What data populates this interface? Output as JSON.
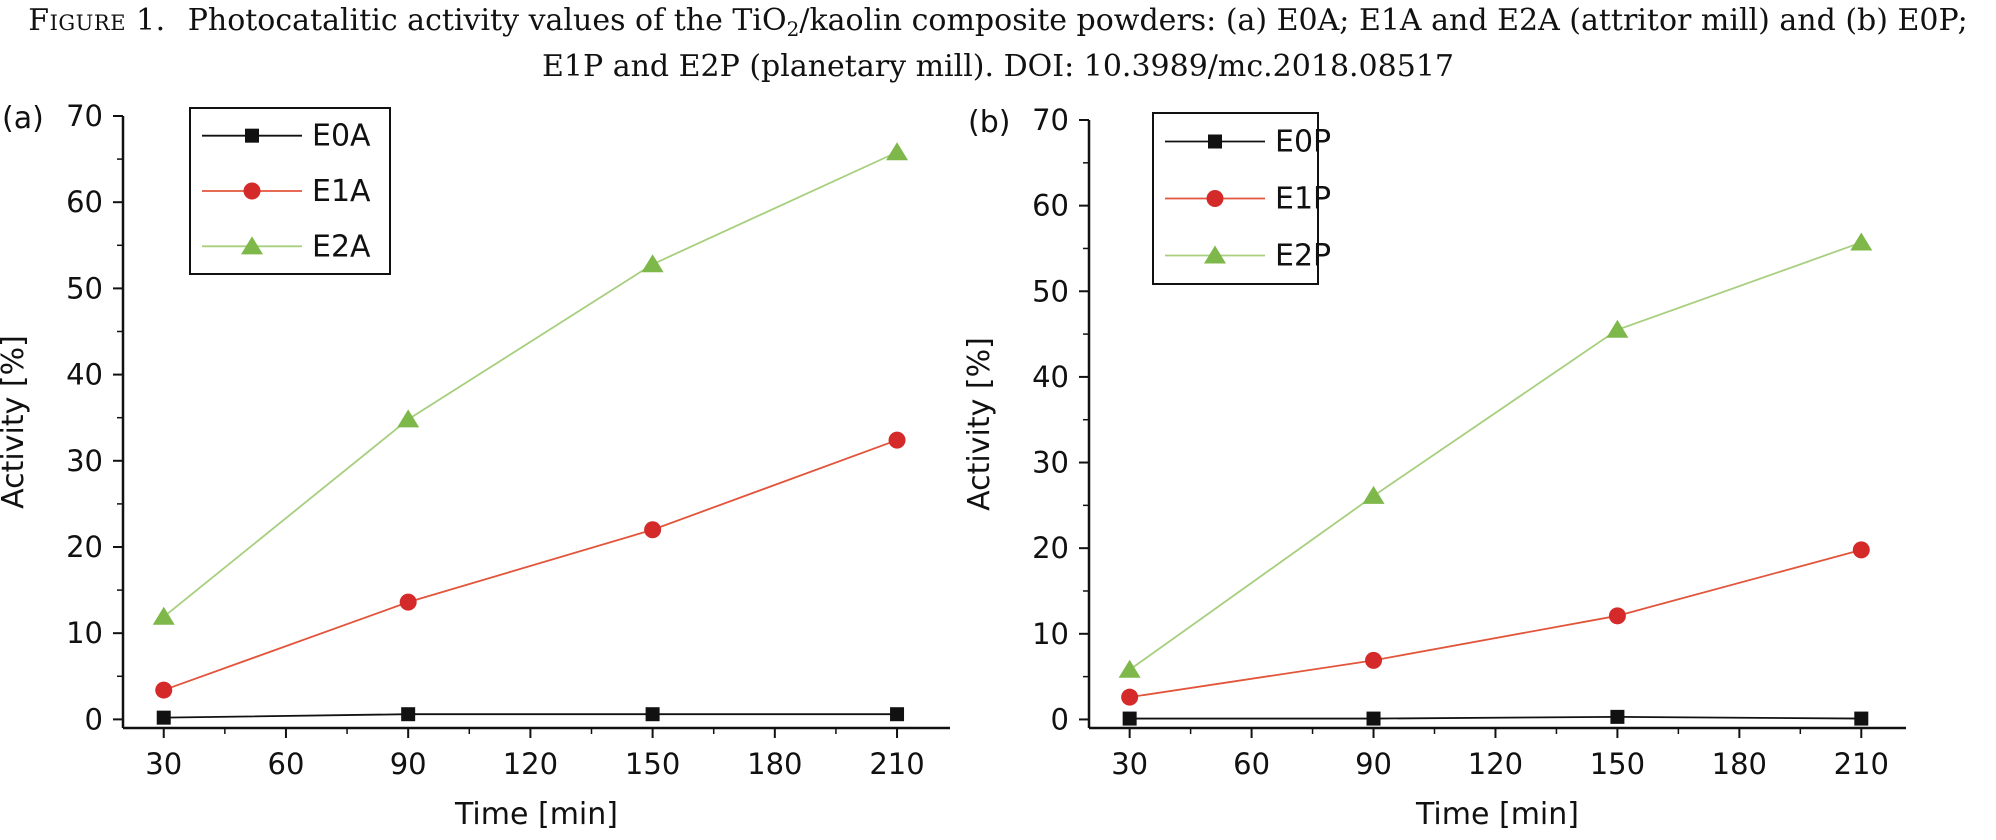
{
  "caption": {
    "figure_label": "Figure 1.",
    "line1_before": "Photocatalitic activity values of the TiO",
    "line1_sub": "2",
    "line1_after": "/kaolin composite powders: (a) E0A; E1A and E2A (attritor mill) and (b) E0P;",
    "line2": "E1P and E2P (planetary mill). DOI: 10.3989/mc.2018.08517"
  },
  "colors": {
    "black": "#111111",
    "red": "#d42a2a",
    "green": "#7fb84a",
    "red_line": "#e2553b",
    "green_line": "#a7cf7e"
  },
  "chart_data": [
    {
      "type": "line",
      "panel_label": "(a)",
      "xlabel": "Time [min]",
      "ylabel": "Activity [%]",
      "x": [
        30,
        90,
        150,
        210
      ],
      "xticks": [
        30,
        60,
        90,
        120,
        150,
        180,
        210
      ],
      "yticks": [
        0,
        10,
        20,
        30,
        40,
        50,
        60,
        70
      ],
      "xlim": [
        20,
        223
      ],
      "ylim": [
        -1,
        70
      ],
      "grid": false,
      "legend_position": "top-left",
      "series": [
        {
          "name": "E0A",
          "marker": "square",
          "values": [
            0.2,
            0.6,
            0.6,
            0.6
          ]
        },
        {
          "name": "E1A",
          "marker": "circle",
          "values": [
            3.4,
            13.6,
            22.0,
            32.4
          ]
        },
        {
          "name": "E2A",
          "marker": "triangle",
          "values": [
            11.9,
            34.8,
            52.8,
            65.8
          ]
        }
      ]
    },
    {
      "type": "line",
      "panel_label": "(b)",
      "xlabel": "Time [min]",
      "ylabel": "Activity [%]",
      "x": [
        30,
        90,
        150,
        210
      ],
      "xticks": [
        30,
        60,
        90,
        120,
        150,
        180,
        210
      ],
      "yticks": [
        0,
        10,
        20,
        30,
        40,
        50,
        60,
        70
      ],
      "xlim": [
        20,
        221
      ],
      "ylim": [
        -1,
        70
      ],
      "grid": false,
      "legend_position": "top-left",
      "series": [
        {
          "name": "E0P",
          "marker": "square",
          "values": [
            0.1,
            0.1,
            0.3,
            0.1
          ]
        },
        {
          "name": "E1P",
          "marker": "circle",
          "values": [
            2.6,
            6.9,
            12.1,
            19.8
          ]
        },
        {
          "name": "E2P",
          "marker": "triangle",
          "values": [
            5.8,
            26.1,
            45.5,
            55.7
          ]
        }
      ]
    }
  ]
}
